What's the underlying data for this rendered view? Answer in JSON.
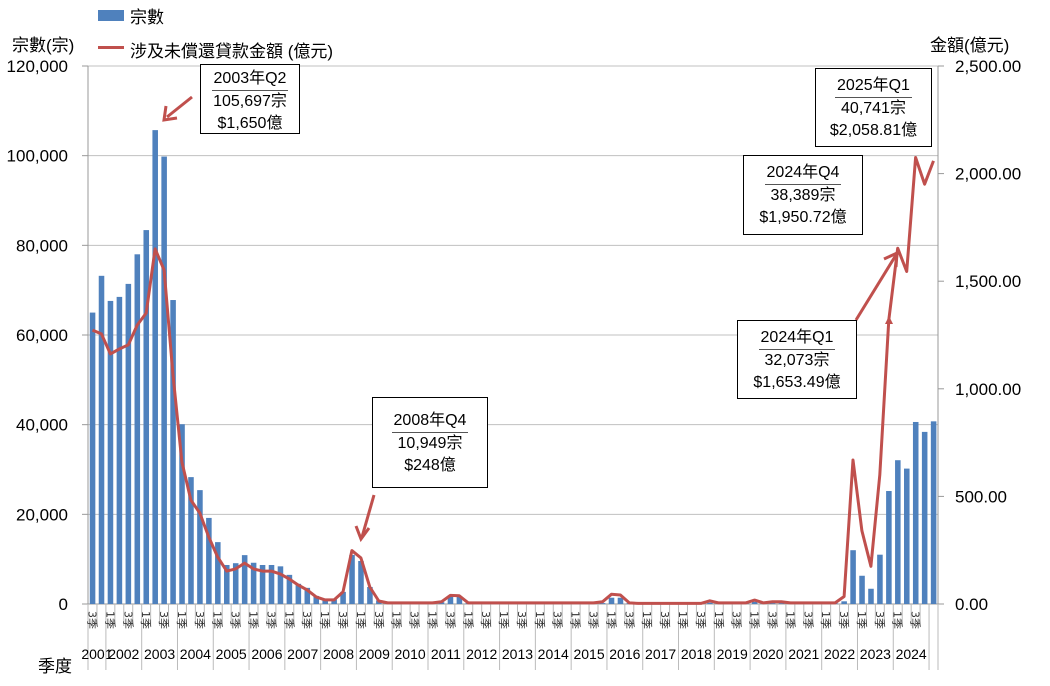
{
  "chart_data": {
    "type": "bar+line",
    "title": "",
    "legend": [
      {
        "name": "宗數",
        "type": "bar",
        "color": "#4f81bd"
      },
      {
        "name": "涉及未償還貸款金額 (億元)",
        "type": "line",
        "color": "#c0504d"
      }
    ],
    "legend_position": "top-left",
    "ylabel_left": "宗數(宗)",
    "ylabel_right": "金額(億元)",
    "xlabel": "季度",
    "ylim_left": [
      0,
      120000
    ],
    "ylim_right": [
      0,
      2500
    ],
    "yticks_left": [
      "0",
      "20,000",
      "40,000",
      "60,000",
      "80,000",
      "100,000",
      "120,000"
    ],
    "yticks_right": [
      "0.00",
      "500.00",
      "1,000.00",
      "1,500.00",
      "2,000.00",
      "2,500.00"
    ],
    "grid": true,
    "first_quarter": "2001Q3",
    "last_quarter": "2025Q1",
    "year_labels": [
      "2001",
      "2002",
      "2003",
      "2004",
      "2005",
      "2006",
      "2007",
      "2008",
      "2009",
      "2010",
      "2011",
      "2012",
      "2013",
      "2014",
      "2015",
      "2016",
      "2017",
      "2018",
      "2019",
      "2020",
      "2021",
      "2022",
      "2023",
      "2024"
    ],
    "quarter_labels": [
      "3季",
      "1季",
      "3季",
      "1季",
      "3季",
      "1季",
      "3季",
      "1季",
      "3季",
      "1季",
      "3季",
      "1季",
      "3季",
      "1季",
      "3季",
      "1季",
      "3季",
      "1季",
      "3季",
      "1季",
      "3季",
      "1季",
      "3季",
      "1季",
      "3季",
      "1季",
      "3季",
      "1季",
      "3季",
      "1季",
      "3季",
      "1季",
      "3季",
      "1季",
      "3季",
      "1季",
      "3季",
      "1季",
      "3季",
      "1季",
      "3季",
      "1季",
      "3季",
      "1季",
      "3季",
      "1季",
      "3季"
    ],
    "series": [
      {
        "name": "宗數",
        "axis": "left",
        "values": [
          65000,
          73200,
          67600,
          68500,
          71400,
          78000,
          83400,
          105697,
          99800,
          67800,
          40100,
          28300,
          25400,
          19200,
          13800,
          8700,
          9100,
          10900,
          9200,
          8700,
          8700,
          8400,
          6500,
          4500,
          3600,
          1800,
          900,
          1000,
          2700,
          10949,
          9600,
          3800,
          800,
          300,
          200,
          200,
          200,
          200,
          300,
          400,
          1600,
          1600,
          200,
          150,
          150,
          150,
          150,
          150,
          150,
          150,
          150,
          150,
          150,
          150,
          150,
          150,
          150,
          200,
          1400,
          1400,
          200,
          150,
          150,
          150,
          150,
          150,
          150,
          150,
          150,
          300,
          150,
          150,
          150,
          150,
          500,
          150,
          200,
          200,
          150,
          150,
          150,
          150,
          150,
          150,
          600,
          12000,
          6300,
          3400,
          11000,
          25200,
          32073,
          30200,
          40600,
          38389,
          40741
        ]
      },
      {
        "name": "涉及未償還貸款金額 (億元)",
        "axis": "right",
        "values": [
          1273,
          1255,
          1162,
          1185,
          1204,
          1296,
          1352,
          1650,
          1552,
          1064,
          660,
          483,
          423,
          311,
          218,
          153,
          163,
          190,
          163,
          153,
          153,
          139,
          116,
          88,
          65,
          33,
          19,
          19,
          56,
          248,
          214,
          79,
          14,
          5,
          5,
          5,
          5,
          5,
          5,
          10,
          40,
          38,
          5,
          5,
          5,
          5,
          5,
          5,
          5,
          5,
          5,
          5,
          5,
          5,
          5,
          5,
          5,
          10,
          45,
          42,
          5,
          3,
          3,
          3,
          3,
          3,
          3,
          3,
          3,
          15,
          5,
          5,
          5,
          5,
          18,
          5,
          10,
          10,
          5,
          5,
          5,
          5,
          5,
          5,
          35,
          669,
          340,
          175,
          600,
          1320,
          1653.49,
          1545,
          2075,
          1950.72,
          2058.81
        ]
      }
    ],
    "annotations": [
      {
        "title": "2003年Q2",
        "count": "105,697宗",
        "amount": "$1,650億"
      },
      {
        "title": "2008年Q4",
        "count": "10,949宗",
        "amount": "$248億"
      },
      {
        "title": "2024年Q1",
        "count": "32,073宗",
        "amount": "$1,653.49億"
      },
      {
        "title": "2024年Q4",
        "count": "38,389宗",
        "amount": "$1,950.72億"
      },
      {
        "title": "2025年Q1",
        "count": "40,741宗",
        "amount": "$2,058.81億"
      }
    ]
  }
}
